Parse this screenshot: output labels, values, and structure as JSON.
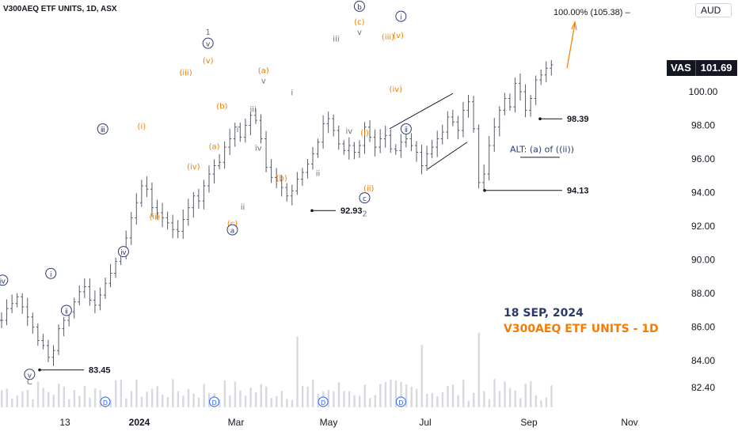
{
  "header": {
    "ticker": "V300AEQ ETF UNITS, 1D, ASX",
    "currency": "AUD"
  },
  "price_tag": {
    "symbol": "VAS",
    "value": "101.69"
  },
  "stamp": {
    "date": "18 SEP, 2024",
    "title": "V300AEQ ETF UNITS - 1D"
  },
  "colors": {
    "orange": "#f57c00",
    "navy": "#2a3c72",
    "grey": "#6b6f7a",
    "candle": "#555b66",
    "volume": "#d6d9df"
  },
  "chart_data": {
    "type": "ohlc",
    "y_axis_labels": [
      "82.40",
      "84.00",
      "86.00",
      "88.00",
      "90.00",
      "92.00",
      "94.00",
      "96.00",
      "98.00",
      "100.00"
    ],
    "x_axis_labels": [
      "13",
      "2024",
      "Mar",
      "May",
      "Jul",
      "Sep",
      "Nov"
    ],
    "projection_label": "100.00% (105.38)",
    "levels": [
      {
        "value": 83.45,
        "label": "83.45"
      },
      {
        "value": 92.93,
        "label": "92.93"
      },
      {
        "value": 94.13,
        "label": "94.13"
      },
      {
        "value": 98.39,
        "label": "98.39"
      }
    ],
    "alt_label": "ALT: (a) of ((ii))",
    "wave_labels": [
      {
        "text": "ⅳ",
        "x": 0.2,
        "y": 88.6,
        "style": "circle",
        "color": "navy"
      },
      {
        "text": "ⅴ",
        "x": 5.4,
        "y": 83.0,
        "style": "circle",
        "color": "navy"
      },
      {
        "text": "C",
        "x": 5.4,
        "y": 82.6,
        "style": "plain",
        "color": "grey"
      },
      {
        "text": "ⅰ",
        "x": 9.5,
        "y": 89.0,
        "style": "circle",
        "color": "navy"
      },
      {
        "text": "ⅱ",
        "x": 12.5,
        "y": 86.8,
        "style": "circle",
        "color": "navy"
      },
      {
        "text": "ⅲ",
        "x": 19.5,
        "y": 97.6,
        "style": "circle",
        "color": "navy"
      },
      {
        "text": "(i)",
        "x": 27.0,
        "y": 97.8,
        "style": "plain",
        "color": "orange"
      },
      {
        "text": "(ii)",
        "x": 29.5,
        "y": 92.4,
        "style": "plain",
        "color": "orange"
      },
      {
        "text": "ⅳ",
        "x": 23.5,
        "y": 90.3,
        "style": "circle",
        "color": "navy"
      },
      {
        "text": "(iii)",
        "x": 35.5,
        "y": 101.0,
        "style": "plain",
        "color": "orange"
      },
      {
        "text": "(iv)",
        "x": 37.0,
        "y": 95.4,
        "style": "plain",
        "color": "orange"
      },
      {
        "text": "(v)",
        "x": 39.8,
        "y": 101.7,
        "style": "plain",
        "color": "orange"
      },
      {
        "text": "1",
        "x": 39.8,
        "y": 103.4,
        "style": "plain",
        "color": "grey"
      },
      {
        "text": "ⅴ",
        "x": 39.8,
        "y": 102.7,
        "style": "circle",
        "color": "navy"
      },
      {
        "text": "(a)",
        "x": 41.0,
        "y": 96.6,
        "style": "plain",
        "color": "orange"
      },
      {
        "text": "(b)",
        "x": 42.5,
        "y": 99.0,
        "style": "plain",
        "color": "orange"
      },
      {
        "text": "(c)",
        "x": 44.5,
        "y": 92.0,
        "style": "plain",
        "color": "orange"
      },
      {
        "text": "ⓐ",
        "x": 44.5,
        "y": 91.6,
        "style": "circle",
        "color": "navy"
      },
      {
        "text": "iii",
        "x": 48.5,
        "y": 98.8,
        "style": "plain",
        "color": "grey"
      },
      {
        "text": "i",
        "x": 45.5,
        "y": 97.6,
        "style": "plain",
        "color": "grey"
      },
      {
        "text": "ii",
        "x": 46.5,
        "y": 93.0,
        "style": "plain",
        "color": "grey"
      },
      {
        "text": "iv",
        "x": 49.5,
        "y": 96.5,
        "style": "plain",
        "color": "grey"
      },
      {
        "text": "(a)",
        "x": 50.5,
        "y": 101.1,
        "style": "plain",
        "color": "orange"
      },
      {
        "text": "v",
        "x": 50.5,
        "y": 100.5,
        "style": "plain",
        "color": "grey"
      },
      {
        "text": "(b)",
        "x": 54.0,
        "y": 94.7,
        "style": "plain",
        "color": "orange"
      },
      {
        "text": "i",
        "x": 56.0,
        "y": 99.8,
        "style": "plain",
        "color": "grey"
      },
      {
        "text": "ii",
        "x": 61.0,
        "y": 95.0,
        "style": "plain",
        "color": "grey"
      },
      {
        "text": "iii",
        "x": 64.5,
        "y": 103.0,
        "style": "plain",
        "color": "grey"
      },
      {
        "text": "iv",
        "x": 67.0,
        "y": 97.5,
        "style": "plain",
        "color": "grey"
      },
      {
        "text": "v",
        "x": 69.0,
        "y": 103.4,
        "style": "plain",
        "color": "grey"
      },
      {
        "text": "(c)",
        "x": 69.0,
        "y": 104.0,
        "style": "plain",
        "color": "orange"
      },
      {
        "text": "ⓑ",
        "x": 69.0,
        "y": 104.9,
        "style": "circle",
        "color": "navy"
      },
      {
        "text": "(i)",
        "x": 70.0,
        "y": 97.4,
        "style": "plain",
        "color": "orange"
      },
      {
        "text": "(ii)",
        "x": 70.8,
        "y": 94.1,
        "style": "plain",
        "color": "orange"
      },
      {
        "text": "ⓒ",
        "x": 70.0,
        "y": 93.5,
        "style": "circle",
        "color": "navy"
      },
      {
        "text": "2",
        "x": 70.0,
        "y": 92.6,
        "style": "plain",
        "color": "grey"
      },
      {
        "text": "(iii)",
        "x": 74.5,
        "y": 103.1,
        "style": "plain",
        "color": "orange"
      },
      {
        "text": "(v)",
        "x": 76.5,
        "y": 103.2,
        "style": "plain",
        "color": "orange"
      },
      {
        "text": "(iv)",
        "x": 76.0,
        "y": 100.0,
        "style": "plain",
        "color": "orange"
      },
      {
        "text": "ⅰ",
        "x": 77.0,
        "y": 104.3,
        "style": "circle",
        "color": "navy"
      },
      {
        "text": "ⅱ",
        "x": 78.0,
        "y": 97.6,
        "style": "circle",
        "color": "navy"
      }
    ],
    "event_markers": [
      {
        "text": "D",
        "x": 20
      },
      {
        "text": "D",
        "x": 41
      },
      {
        "text": "D",
        "x": 62
      },
      {
        "text": "D",
        "x": 77
      }
    ],
    "closes": [
      86.4,
      87.1,
      87.4,
      87.8,
      87.2,
      86.6,
      86.0,
      85.2,
      84.9,
      84.2,
      84.6,
      85.9,
      86.4,
      86.9,
      87.5,
      88.1,
      88.4,
      87.6,
      87.3,
      87.9,
      88.6,
      89.2,
      89.9,
      90.4,
      91.3,
      92.5,
      93.4,
      94.4,
      94.2,
      93.1,
      92.8,
      92.5,
      92.2,
      91.8,
      91.7,
      92.4,
      93.1,
      93.8,
      93.5,
      94.4,
      95.1,
      95.6,
      95.8,
      96.7,
      97.2,
      97.9,
      97.3,
      98.0,
      98.6,
      98.3,
      97.2,
      95.5,
      94.9,
      94.7,
      94.3,
      93.8,
      94.1,
      94.8,
      95.2,
      95.7,
      96.3,
      97.0,
      98.1,
      98.4,
      97.7,
      96.9,
      96.5,
      96.8,
      96.4,
      96.8,
      97.9,
      97.3,
      96.7,
      97.2,
      97.4,
      96.6,
      96.5,
      97.0,
      97.2,
      96.8,
      96.4,
      95.6,
      96.3,
      96.7,
      97.2,
      97.6,
      98.5,
      98.2,
      97.7,
      98.9,
      99.4,
      97.8,
      94.6,
      95.1,
      96.8,
      97.9,
      98.9,
      99.6,
      99.1,
      100.5,
      100.0,
      98.9,
      99.6,
      100.7,
      101.0,
      101.4,
      101.6
    ]
  }
}
